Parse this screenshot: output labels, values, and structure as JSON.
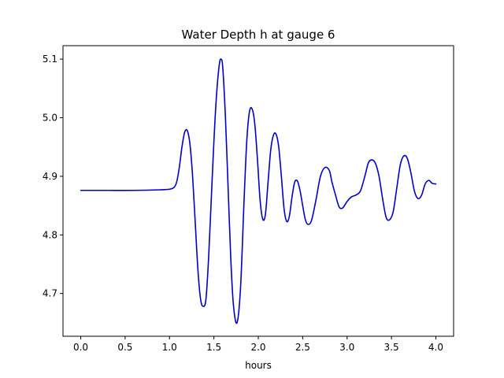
{
  "chart_data": {
    "type": "line",
    "title": "Water Depth h at gauge 6",
    "xlabel": "hours",
    "ylabel": "",
    "xlim": [
      -0.2,
      4.2
    ],
    "ylim": [
      4.627,
      5.123
    ],
    "xticks": [
      0.0,
      0.5,
      1.0,
      1.5,
      2.0,
      2.5,
      3.0,
      3.5,
      4.0
    ],
    "xtick_labels": [
      "0.0",
      "0.5",
      "1.0",
      "1.5",
      "2.0",
      "2.5",
      "3.0",
      "3.5",
      "4.0"
    ],
    "yticks": [
      4.7,
      4.8,
      4.9,
      5.0,
      5.1
    ],
    "ytick_labels": [
      "4.7",
      "4.8",
      "4.9",
      "5.0",
      "5.1"
    ],
    "grid": false,
    "legend": "none",
    "series": [
      {
        "color": "#0000cc",
        "x": [
          0.0,
          0.3,
          0.6,
          0.9,
          1.0,
          1.05,
          1.08,
          1.11,
          1.14,
          1.17,
          1.2,
          1.23,
          1.26,
          1.29,
          1.32,
          1.35,
          1.38,
          1.41,
          1.44,
          1.47,
          1.5,
          1.53,
          1.56,
          1.58,
          1.6,
          1.63,
          1.66,
          1.69,
          1.72,
          1.76,
          1.8,
          1.84,
          1.87,
          1.9,
          1.93,
          1.96,
          1.99,
          2.02,
          2.05,
          2.08,
          2.11,
          2.14,
          2.17,
          2.2,
          2.23,
          2.26,
          2.29,
          2.32,
          2.35,
          2.38,
          2.41,
          2.44,
          2.47,
          2.5,
          2.53,
          2.56,
          2.6,
          2.65,
          2.7,
          2.75,
          2.8,
          2.83,
          2.87,
          2.91,
          2.95,
          3.0,
          3.05,
          3.1,
          3.15,
          3.2,
          3.24,
          3.28,
          3.32,
          3.36,
          3.4,
          3.44,
          3.48,
          3.52,
          3.56,
          3.6,
          3.64,
          3.68,
          3.72,
          3.76,
          3.8,
          3.84,
          3.88,
          3.92,
          3.96,
          4.0
        ],
        "y": [
          4.876,
          4.876,
          4.876,
          4.877,
          4.878,
          4.881,
          4.89,
          4.915,
          4.95,
          4.975,
          4.978,
          4.955,
          4.9,
          4.82,
          4.74,
          4.69,
          4.678,
          4.69,
          4.76,
          4.86,
          4.96,
          5.04,
          5.09,
          5.1,
          5.085,
          5.0,
          4.88,
          4.76,
          4.68,
          4.65,
          4.71,
          4.86,
          4.96,
          5.01,
          5.015,
          4.99,
          4.93,
          4.86,
          4.827,
          4.835,
          4.89,
          4.945,
          4.97,
          4.972,
          4.95,
          4.9,
          4.845,
          4.823,
          4.832,
          4.865,
          4.89,
          4.892,
          4.876,
          4.85,
          4.826,
          4.818,
          4.825,
          4.86,
          4.9,
          4.915,
          4.91,
          4.89,
          4.868,
          4.848,
          4.846,
          4.857,
          4.865,
          4.868,
          4.875,
          4.9,
          4.923,
          4.928,
          4.922,
          4.9,
          4.862,
          4.83,
          4.826,
          4.84,
          4.88,
          4.92,
          4.935,
          4.93,
          4.905,
          4.874,
          4.862,
          4.868,
          4.887,
          4.893,
          4.888,
          4.887
        ]
      }
    ]
  }
}
